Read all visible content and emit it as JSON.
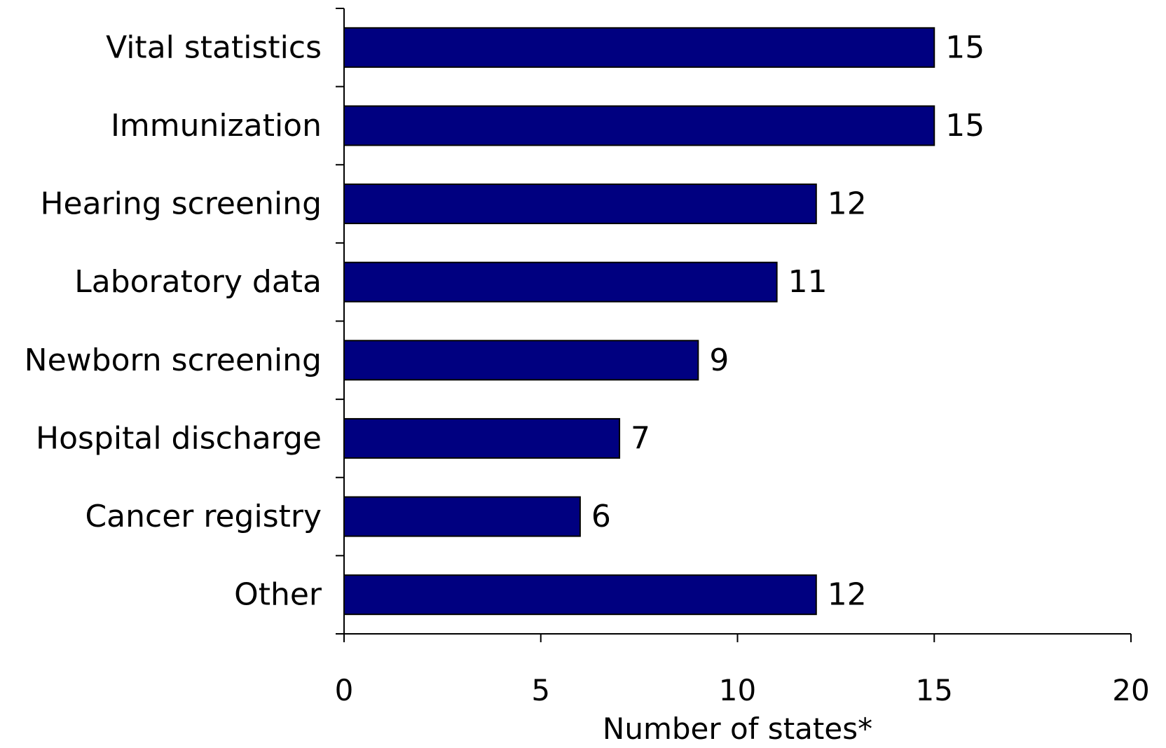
{
  "chart_data": {
    "type": "bar",
    "orientation": "horizontal",
    "categories": [
      "Vital statistics",
      "Immunization",
      "Hearing screening",
      "Laboratory data",
      "Newborn screening",
      "Hospital discharge",
      "Cancer registry",
      "Other"
    ],
    "values": [
      15,
      15,
      12,
      11,
      9,
      7,
      6,
      12
    ],
    "data_labels": [
      "15",
      "15",
      "12",
      "11",
      "9",
      "7",
      "6",
      "12"
    ],
    "title": "",
    "xlabel": "Number of states*",
    "ylabel": "",
    "xlim": [
      0,
      20
    ],
    "xticks": [
      "0",
      "5",
      "10",
      "15",
      "20"
    ],
    "grid": false,
    "legend": "none",
    "colors": {
      "bar_fill": "#000080",
      "bar_stroke": "#000000",
      "axis": "#000000",
      "background": "#ffffff"
    }
  }
}
